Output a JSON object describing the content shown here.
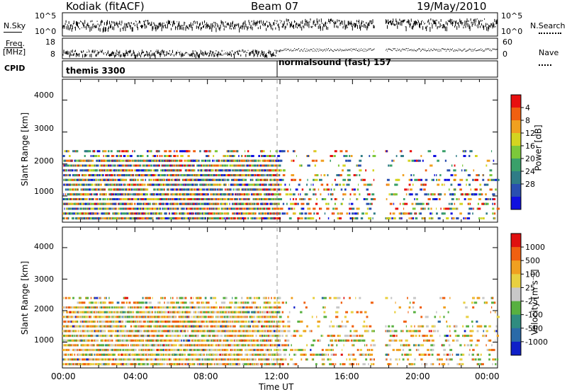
{
  "header": {
    "radar": "Kodiak (fitACF)",
    "beam": "Beam 07",
    "date": "19/May/2010"
  },
  "left_labels": {
    "nsky": "N.Sky",
    "freq": "Freq.",
    "freq_unit": "[MHz]",
    "cpid": "CPID"
  },
  "right_labels": {
    "nsearch": "N.Search",
    "nave": "Nave"
  },
  "status_axes": {
    "noise_ticks_left": [
      "10^5",
      "10^0"
    ],
    "noise_ticks_right": [
      "10^5",
      "10^0"
    ],
    "freq_ticks_left": [
      "18",
      "8"
    ],
    "nave_ticks_right": [
      "60",
      "0"
    ]
  },
  "cpid_segments": [
    {
      "label": "themis 3300",
      "start": "00:00"
    },
    {
      "label": "normalsound (fast) 157",
      "start": "12:00"
    }
  ],
  "chart_data": [
    {
      "type": "heatmap",
      "panel": "power",
      "xlabel": "",
      "ylabel": "Slant Range [km]",
      "x_ticks": [
        "00:00",
        "04:00",
        "08:00",
        "12:00",
        "16:00",
        "20:00",
        "00:00"
      ],
      "x_range_hours": [
        0,
        24
      ],
      "y_ticks": [
        1000,
        2000,
        3000,
        4000
      ],
      "ylim": [
        180,
        4650
      ],
      "colorbar": {
        "label": "Power [dB]",
        "ticks": [
          4,
          8,
          12,
          16,
          20,
          24,
          28
        ],
        "range": [
          0,
          32
        ],
        "colors": [
          "#1010e0",
          "#2a4fb0",
          "#2f7c86",
          "#3aa06a",
          "#7cc83a",
          "#d4d420",
          "#f0a020",
          "#f06010",
          "#e81010"
        ]
      },
      "scatter_gates_km": [
        300,
        450,
        600,
        750,
        900,
        1050,
        1200,
        1350,
        1500,
        1650,
        1800,
        1950,
        2100,
        2250,
        2400
      ],
      "data_gaps_hours": [
        [
          17.2,
          17.8
        ]
      ],
      "vertical_marker_hour": 12
    },
    {
      "type": "heatmap",
      "panel": "velocity",
      "xlabel": "Time UT",
      "ylabel": "Slant Range [km]",
      "x_ticks": [
        "00:00",
        "04:00",
        "08:00",
        "12:00",
        "16:00",
        "20:00",
        "00:00"
      ],
      "x_range_hours": [
        0,
        24
      ],
      "y_ticks": [
        1000,
        2000,
        3000,
        4000
      ],
      "ylim": [
        180,
        4650
      ],
      "colorbar": {
        "label": "Velocity [m s⁻¹]",
        "ticks": [
          "1000",
          "500",
          "100",
          "25",
          "-25",
          "-100",
          "-500",
          "-1000"
        ],
        "colors": [
          "#1020c8",
          "#2a6aa8",
          "#2f8c80",
          "#58b040",
          "#c8c8c8",
          "#e8d040",
          "#f0a020",
          "#f06010",
          "#e01010"
        ]
      },
      "scatter_gates_km": [
        300,
        450,
        600,
        750,
        900,
        1050,
        1200,
        1350,
        1500,
        1650,
        1800,
        1950,
        2100,
        2250,
        2400
      ],
      "data_gaps_hours": [
        [
          17.2,
          17.8
        ]
      ],
      "vertical_marker_hour": 12
    }
  ]
}
